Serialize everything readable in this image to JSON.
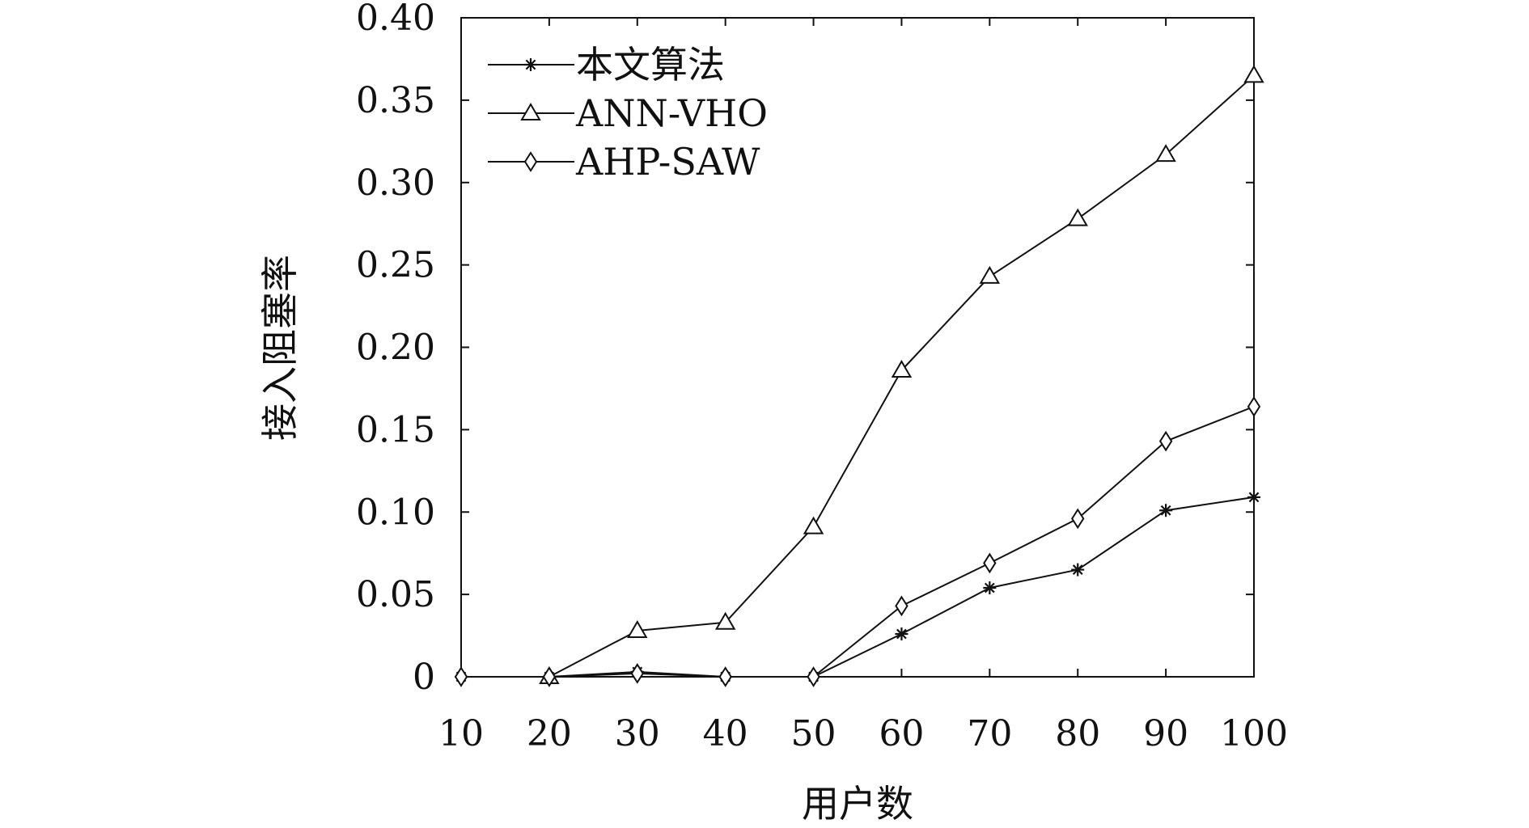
{
  "chart_data": {
    "type": "line",
    "xlabel": "用户数",
    "ylabel": "接入阻塞率",
    "categories": [
      10,
      20,
      30,
      40,
      50,
      60,
      70,
      80,
      90,
      100
    ],
    "x_tick_labels": [
      "10",
      "20",
      "30",
      "40",
      "50",
      "60",
      "70",
      "80",
      "90",
      "100"
    ],
    "y_tick_values": [
      0,
      0.05,
      0.1,
      0.15,
      0.2,
      0.25,
      0.3,
      0.35,
      0.4
    ],
    "y_tick_labels": [
      "0",
      "0.05",
      "0.10",
      "0.15",
      "0.20",
      "0.25",
      "0.30",
      "0.35",
      "0.40"
    ],
    "ylim": [
      0,
      0.4
    ],
    "grid": false,
    "legend_position": "top-left",
    "series": [
      {
        "name": "本文算法",
        "marker": "star",
        "x": [
          10,
          20,
          30,
          40
        ],
        "values": [
          0,
          0,
          0.003,
          0
        ]
      },
      {
        "name": "本文算法",
        "marker": "star",
        "x": [
          50,
          60,
          70,
          80,
          90,
          100
        ],
        "values": [
          0,
          0.026,
          0.054,
          0.065,
          0.101,
          0.109
        ]
      },
      {
        "name": "ANN-VHO",
        "marker": "triangle",
        "x": [
          20,
          30,
          40,
          50,
          60,
          70,
          80,
          90,
          100
        ],
        "values": [
          0,
          0.028,
          0.033,
          0.091,
          0.186,
          0.243,
          0.278,
          0.317,
          0.365
        ]
      },
      {
        "name": "AHP-SAW",
        "marker": "diamond",
        "x": [
          10,
          20,
          30,
          40,
          50,
          60,
          70,
          80,
          90,
          100
        ],
        "values": [
          0,
          0,
          0.002,
          0,
          0,
          0.043,
          0.069,
          0.096,
          0.143,
          0.164
        ]
      }
    ],
    "legend": [
      {
        "label": "本文算法",
        "marker": "star"
      },
      {
        "label": "ANN-VHO",
        "marker": "triangle"
      },
      {
        "label": "AHP-SAW",
        "marker": "diamond"
      }
    ]
  }
}
